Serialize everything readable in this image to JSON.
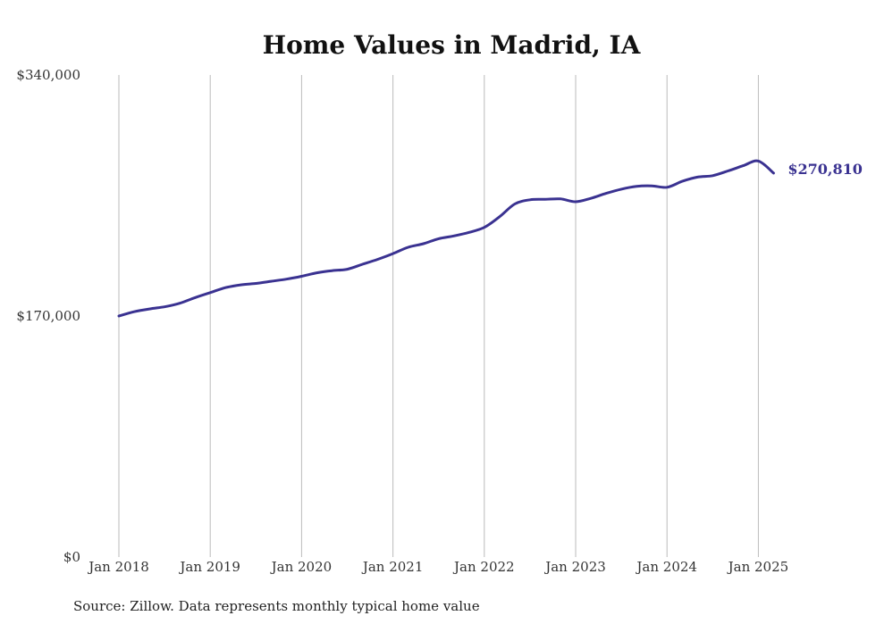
{
  "chart_data": {
    "type": "line",
    "title": "Home Values in Madrid, IA",
    "xlabel": "",
    "ylabel": "",
    "ylim": [
      0,
      340000
    ],
    "xlim": [
      "2018-01",
      "2025-12"
    ],
    "grid": {
      "vertical": true,
      "horizontal": false
    },
    "legend": "none",
    "y_ticks": [
      {
        "value": 0,
        "label": "$0"
      },
      {
        "value": 170000,
        "label": "$170,000"
      },
      {
        "value": 340000,
        "label": "$340,000"
      }
    ],
    "x_ticks": [
      {
        "value": "2018-01",
        "label": "Jan 2018"
      },
      {
        "value": "2019-01",
        "label": "Jan 2019"
      },
      {
        "value": "2020-01",
        "label": "Jan 2020"
      },
      {
        "value": "2021-01",
        "label": "Jan 2021"
      },
      {
        "value": "2022-01",
        "label": "Jan 2022"
      },
      {
        "value": "2023-01",
        "label": "Jan 2023"
      },
      {
        "value": "2024-01",
        "label": "Jan 2024"
      },
      {
        "value": "2025-01",
        "label": "Jan 2025"
      }
    ],
    "series": [
      {
        "color": "#3a3291",
        "x": [
          "2018-01",
          "2018-03",
          "2018-05",
          "2018-07",
          "2018-09",
          "2018-11",
          "2019-01",
          "2019-03",
          "2019-05",
          "2019-07",
          "2019-09",
          "2019-11",
          "2020-01",
          "2020-03",
          "2020-05",
          "2020-07",
          "2020-09",
          "2020-11",
          "2021-01",
          "2021-03",
          "2021-05",
          "2021-07",
          "2021-09",
          "2021-11",
          "2022-01",
          "2022-03",
          "2022-05",
          "2022-07",
          "2022-09",
          "2022-11",
          "2023-01",
          "2023-03",
          "2023-05",
          "2023-07",
          "2023-09",
          "2023-11",
          "2024-01",
          "2024-03",
          "2024-05",
          "2024-07",
          "2024-09",
          "2024-11",
          "2025-01",
          "2025-03"
        ],
        "y": [
          170000,
          173000,
          175000,
          176500,
          179000,
          183000,
          186500,
          190000,
          192000,
          193000,
          194500,
          196000,
          198000,
          200500,
          202000,
          203000,
          206500,
          210000,
          214000,
          218500,
          221000,
          224500,
          226500,
          229000,
          232500,
          240000,
          249000,
          252000,
          252300,
          252600,
          250600,
          253000,
          256500,
          259500,
          261500,
          261800,
          260800,
          265000,
          268000,
          269000,
          272300,
          276000,
          279300,
          270810
        ]
      }
    ]
  },
  "end_label": "$270,810",
  "source_note": "Source: Zillow. Data represents monthly typical home value"
}
